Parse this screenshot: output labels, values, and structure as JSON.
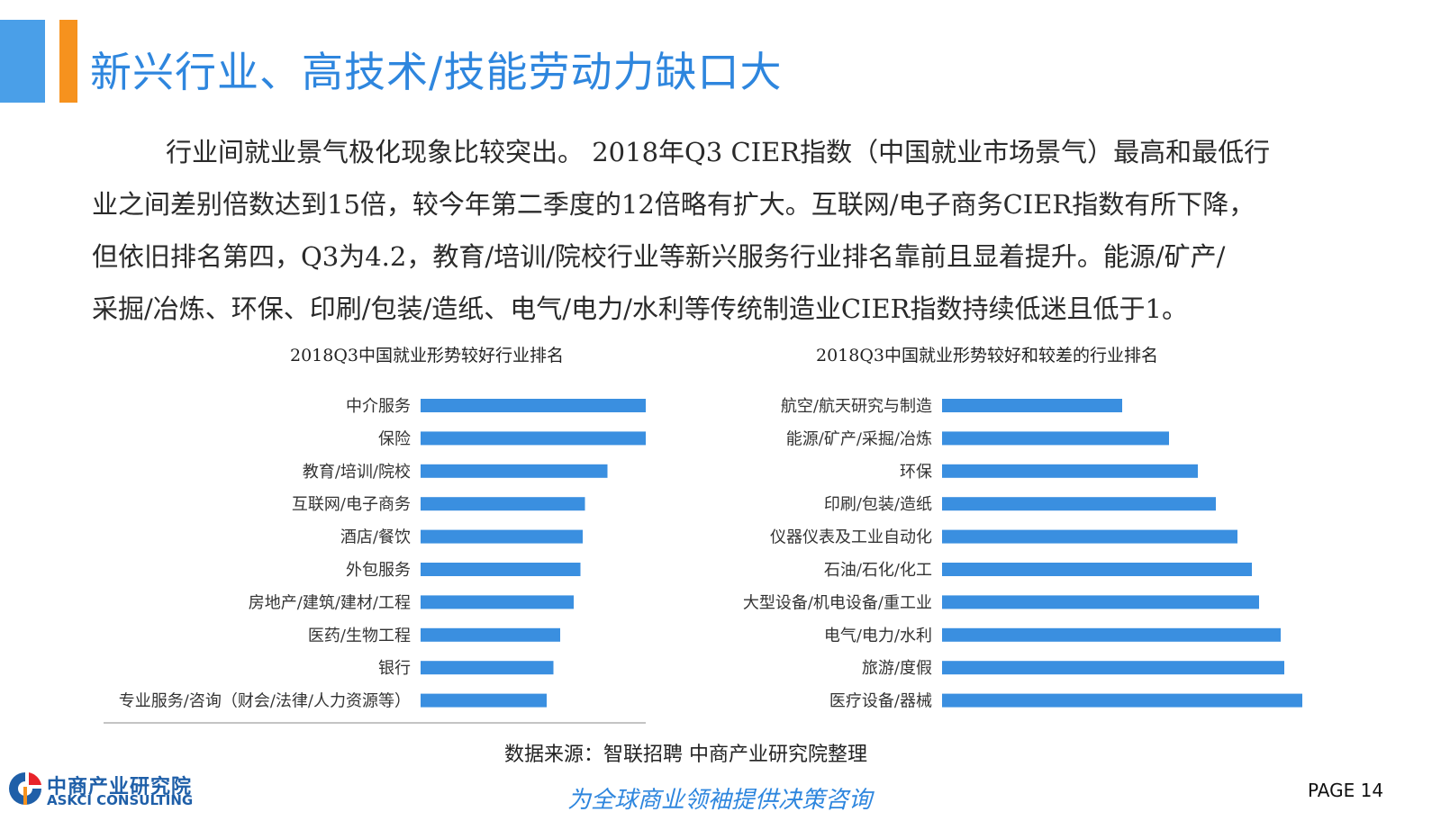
{
  "header": {
    "title": "新兴行业、高技术/技能劳动力缺口大"
  },
  "paragraph": {
    "lines": [
      "行业间就业景气极化现象比较突出。 2018年Q3 CIER指数（中国就业市场景气）最高和最低行",
      "业之间差别倍数达到15倍，较今年第二季度的12倍略有扩大。互联网/电子商务CIER指数有所下降，",
      "但依旧排名第四，Q3为4.2，教育/培训/院校行业等新兴服务行业排名靠前且显着提升。能源/矿产/",
      "采掘/冶炼、环保、印刷/包装/造纸、电气/电力/水利等传统制造业CIER指数持续低迷且低于1。"
    ]
  },
  "chart_data": [
    {
      "type": "bar",
      "orientation": "horizontal",
      "title": "2018Q3中国就业形势较好行业排名",
      "categories": [
        "中介服务",
        "保险",
        "教育/培训/院校",
        "互联网/电子商务",
        "酒店/餐饮",
        "外包服务",
        "房地产/建筑/建材/工程",
        "医药/生物工程",
        "银行",
        "专业服务/咨询（财会/法律/人力资源等）"
      ],
      "values": [
        1.0,
        1.0,
        0.83,
        0.73,
        0.72,
        0.71,
        0.68,
        0.62,
        0.59,
        0.56
      ],
      "color": "#3a8fe0"
    },
    {
      "type": "bar",
      "orientation": "horizontal",
      "title": "2018Q3中国就业形势较好和较差的行业排名",
      "categories": [
        "航空/航天研究与制造",
        "能源/矿产/采掘/冶炼",
        "环保",
        "印刷/包装/造纸",
        "仪器仪表及工业自动化",
        "石油/石化/化工",
        "大型设备/机电设备/重工业",
        "电气/电力/水利",
        "旅游/度假",
        "医疗设备/器械"
      ],
      "values": [
        0.5,
        0.63,
        0.71,
        0.76,
        0.82,
        0.86,
        0.88,
        0.94,
        0.95,
        1.0
      ],
      "color": "#3a8fe0"
    }
  ],
  "footer": {
    "source": "数据来源：智联招聘 中商产业研究院整理",
    "logo_cn": "中商产业研究院",
    "logo_en": "ASKCI CONSULTING",
    "slogan": "为全球商业领袖提供决策咨询",
    "page_label": "PAGE  14"
  }
}
